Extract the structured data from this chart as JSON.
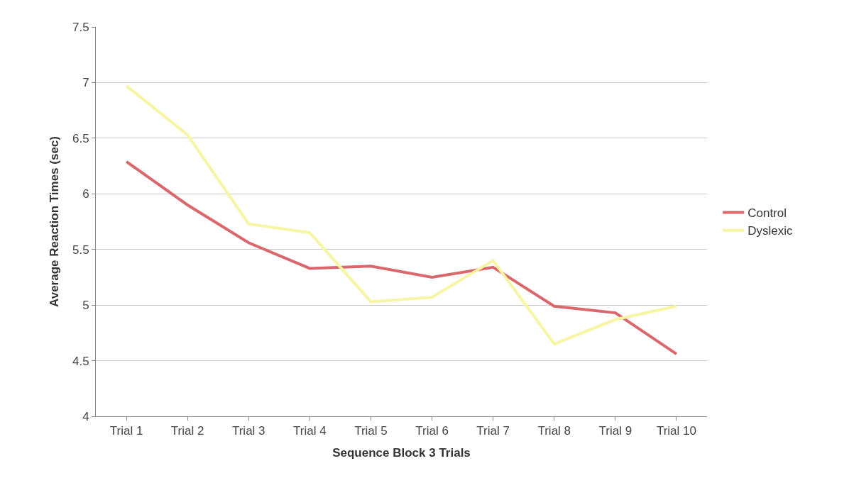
{
  "chart_data": {
    "type": "line",
    "xlabel": "Sequence Block 3 Trials",
    "ylabel": "Average Reaction Times (sec)",
    "categories": [
      "Trial 1",
      "Trial 2",
      "Trial 3",
      "Trial 4",
      "Trial 5",
      "Trial 6",
      "Trial 7",
      "Trial 8",
      "Trial 9",
      "Trial 10"
    ],
    "series": [
      {
        "name": "Control",
        "color": "#d9676b",
        "values": [
          6.29,
          5.9,
          5.56,
          5.33,
          5.35,
          5.25,
          5.34,
          4.99,
          4.93,
          4.56
        ]
      },
      {
        "name": "Dyslexic",
        "color": "#f6f5a3",
        "values": [
          6.97,
          6.53,
          5.73,
          5.65,
          5.03,
          5.07,
          5.4,
          4.65,
          4.87,
          4.99
        ]
      }
    ],
    "ylim": [
      4,
      7.5
    ],
    "yticks": [
      4,
      4.5,
      5,
      5.5,
      6,
      6.5,
      7,
      7.5
    ],
    "grid": "y",
    "legend": "right",
    "marker": "none",
    "line_style": "solid"
  }
}
